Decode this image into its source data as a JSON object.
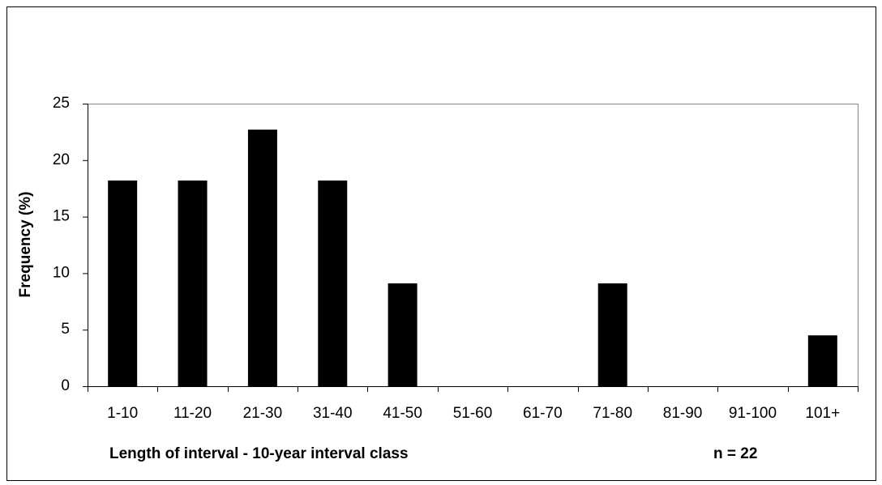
{
  "chart_data": {
    "type": "bar",
    "categories": [
      "1-10",
      "11-20",
      "21-30",
      "31-40",
      "41-50",
      "51-60",
      "61-70",
      "71-80",
      "81-90",
      "91-100",
      "101+"
    ],
    "values": [
      18.2,
      18.2,
      22.7,
      18.2,
      9.1,
      0,
      0,
      9.1,
      0,
      0,
      4.5
    ],
    "color": "#000000",
    "y_label": "Frequency (%)",
    "x_label": "Length of interval - 10-year interval class",
    "annotation": "n = 22",
    "ylim": [
      0,
      25
    ],
    "yticks": [
      0,
      5,
      10,
      15,
      20,
      25
    ],
    "grid": false
  }
}
